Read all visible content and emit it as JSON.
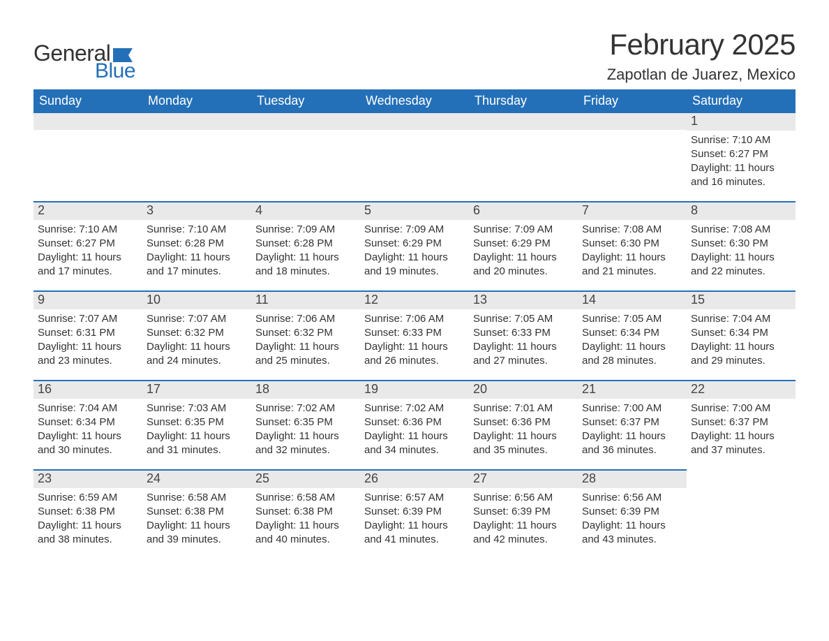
{
  "brand": {
    "word1": "General",
    "word2": "Blue",
    "flag_color": "#2470b8",
    "text_dark": "#333333"
  },
  "header": {
    "month_title": "February 2025",
    "location": "Zapotlan de Juarez, Mexico"
  },
  "colors": {
    "header_bg": "#2470b8",
    "header_text": "#ffffff",
    "daynum_bg": "#e9e9e9",
    "row_border": "#2470b8",
    "body_text": "#333333",
    "page_bg": "#ffffff"
  },
  "weekdays": [
    "Sunday",
    "Monday",
    "Tuesday",
    "Wednesday",
    "Thursday",
    "Friday",
    "Saturday"
  ],
  "labels": {
    "sunrise": "Sunrise:",
    "sunset": "Sunset:",
    "daylight": "Daylight:"
  },
  "weeks": [
    [
      null,
      null,
      null,
      null,
      null,
      null,
      {
        "day": "1",
        "sunrise": "7:10 AM",
        "sunset": "6:27 PM",
        "daylight": "11 hours and 16 minutes."
      }
    ],
    [
      {
        "day": "2",
        "sunrise": "7:10 AM",
        "sunset": "6:27 PM",
        "daylight": "11 hours and 17 minutes."
      },
      {
        "day": "3",
        "sunrise": "7:10 AM",
        "sunset": "6:28 PM",
        "daylight": "11 hours and 17 minutes."
      },
      {
        "day": "4",
        "sunrise": "7:09 AM",
        "sunset": "6:28 PM",
        "daylight": "11 hours and 18 minutes."
      },
      {
        "day": "5",
        "sunrise": "7:09 AM",
        "sunset": "6:29 PM",
        "daylight": "11 hours and 19 minutes."
      },
      {
        "day": "6",
        "sunrise": "7:09 AM",
        "sunset": "6:29 PM",
        "daylight": "11 hours and 20 minutes."
      },
      {
        "day": "7",
        "sunrise": "7:08 AM",
        "sunset": "6:30 PM",
        "daylight": "11 hours and 21 minutes."
      },
      {
        "day": "8",
        "sunrise": "7:08 AM",
        "sunset": "6:30 PM",
        "daylight": "11 hours and 22 minutes."
      }
    ],
    [
      {
        "day": "9",
        "sunrise": "7:07 AM",
        "sunset": "6:31 PM",
        "daylight": "11 hours and 23 minutes."
      },
      {
        "day": "10",
        "sunrise": "7:07 AM",
        "sunset": "6:32 PM",
        "daylight": "11 hours and 24 minutes."
      },
      {
        "day": "11",
        "sunrise": "7:06 AM",
        "sunset": "6:32 PM",
        "daylight": "11 hours and 25 minutes."
      },
      {
        "day": "12",
        "sunrise": "7:06 AM",
        "sunset": "6:33 PM",
        "daylight": "11 hours and 26 minutes."
      },
      {
        "day": "13",
        "sunrise": "7:05 AM",
        "sunset": "6:33 PM",
        "daylight": "11 hours and 27 minutes."
      },
      {
        "day": "14",
        "sunrise": "7:05 AM",
        "sunset": "6:34 PM",
        "daylight": "11 hours and 28 minutes."
      },
      {
        "day": "15",
        "sunrise": "7:04 AM",
        "sunset": "6:34 PM",
        "daylight": "11 hours and 29 minutes."
      }
    ],
    [
      {
        "day": "16",
        "sunrise": "7:04 AM",
        "sunset": "6:34 PM",
        "daylight": "11 hours and 30 minutes."
      },
      {
        "day": "17",
        "sunrise": "7:03 AM",
        "sunset": "6:35 PM",
        "daylight": "11 hours and 31 minutes."
      },
      {
        "day": "18",
        "sunrise": "7:02 AM",
        "sunset": "6:35 PM",
        "daylight": "11 hours and 32 minutes."
      },
      {
        "day": "19",
        "sunrise": "7:02 AM",
        "sunset": "6:36 PM",
        "daylight": "11 hours and 34 minutes."
      },
      {
        "day": "20",
        "sunrise": "7:01 AM",
        "sunset": "6:36 PM",
        "daylight": "11 hours and 35 minutes."
      },
      {
        "day": "21",
        "sunrise": "7:00 AM",
        "sunset": "6:37 PM",
        "daylight": "11 hours and 36 minutes."
      },
      {
        "day": "22",
        "sunrise": "7:00 AM",
        "sunset": "6:37 PM",
        "daylight": "11 hours and 37 minutes."
      }
    ],
    [
      {
        "day": "23",
        "sunrise": "6:59 AM",
        "sunset": "6:38 PM",
        "daylight": "11 hours and 38 minutes."
      },
      {
        "day": "24",
        "sunrise": "6:58 AM",
        "sunset": "6:38 PM",
        "daylight": "11 hours and 39 minutes."
      },
      {
        "day": "25",
        "sunrise": "6:58 AM",
        "sunset": "6:38 PM",
        "daylight": "11 hours and 40 minutes."
      },
      {
        "day": "26",
        "sunrise": "6:57 AM",
        "sunset": "6:39 PM",
        "daylight": "11 hours and 41 minutes."
      },
      {
        "day": "27",
        "sunrise": "6:56 AM",
        "sunset": "6:39 PM",
        "daylight": "11 hours and 42 minutes."
      },
      {
        "day": "28",
        "sunrise": "6:56 AM",
        "sunset": "6:39 PM",
        "daylight": "11 hours and 43 minutes."
      },
      null
    ]
  ]
}
